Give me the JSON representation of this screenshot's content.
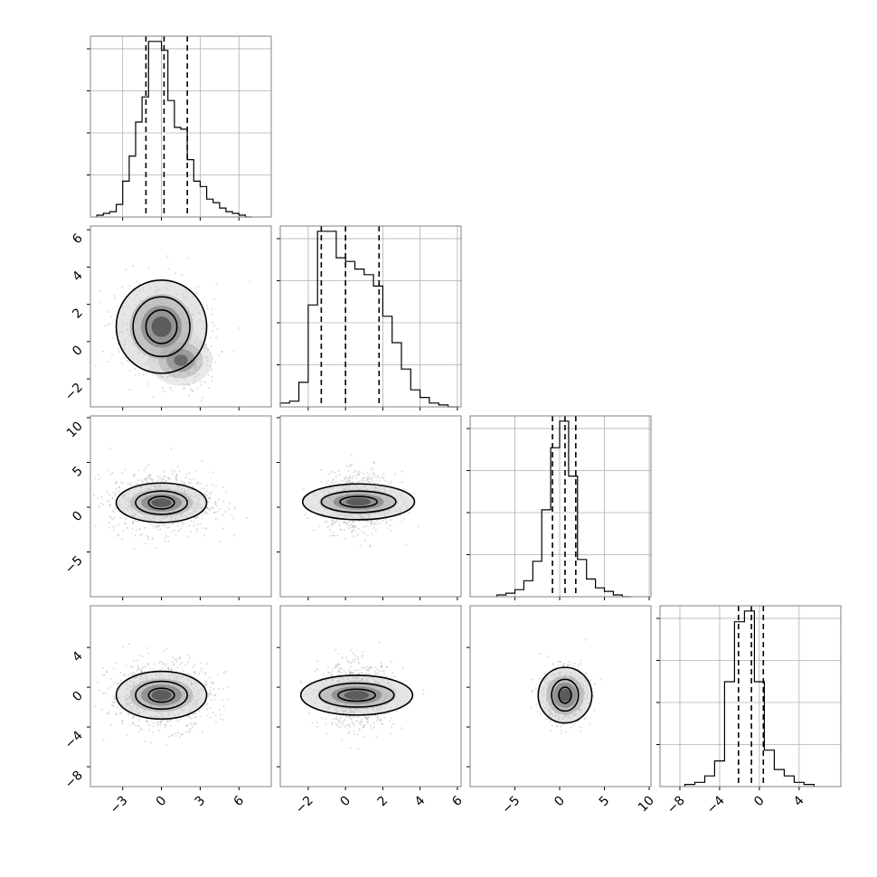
{
  "chart_data": {
    "type": "corner",
    "parameters": [
      {
        "range": [
          -5.5,
          8.5
        ],
        "xticks": [
          -3,
          0,
          3,
          6
        ],
        "xtick_labels": [
          "−3",
          "0",
          "3",
          "6"
        ],
        "hist": {
          "edges": [
            -5.0,
            -4.5,
            -4.0,
            -3.5,
            -3.0,
            -2.5,
            -2.0,
            -1.5,
            -1.0,
            -0.5,
            0.0,
            0.5,
            1.0,
            1.5,
            2.0,
            2.5,
            3.0,
            3.5,
            4.0,
            4.5,
            5.0,
            5.5,
            6.0,
            6.5,
            7.0
          ],
          "counts": [
            1,
            2,
            3,
            7,
            20,
            34,
            53,
            67,
            98,
            98,
            93,
            65,
            50,
            49,
            32,
            20,
            17,
            10,
            8,
            5,
            3,
            2,
            1,
            0
          ]
        },
        "quantiles": [
          -1.2,
          0.2,
          2.0
        ]
      },
      {
        "range": [
          -3.5,
          6.2
        ],
        "xticks": [
          -2,
          0,
          2,
          4,
          6
        ],
        "xtick_labels": [
          "−2",
          "0",
          "2",
          "4",
          "6"
        ],
        "yticks": [
          -2,
          0,
          2,
          4,
          6
        ],
        "ytick_labels": [
          "−2",
          "0",
          "2",
          "4",
          "6"
        ],
        "hist": {
          "edges": [
            -3.5,
            -3.0,
            -2.5,
            -2.0,
            -1.5,
            -1.0,
            -0.5,
            0.0,
            0.5,
            1.0,
            1.5,
            2.0,
            2.5,
            3.0,
            3.5,
            4.0,
            4.5,
            5.0,
            5.5,
            6.0
          ],
          "counts": [
            2,
            3,
            13,
            54,
            93,
            93,
            79,
            77,
            73,
            70,
            64,
            48,
            34,
            20,
            9,
            5,
            2,
            1,
            0
          ]
        },
        "quantiles": [
          -1.3,
          0.0,
          1.8
        ]
      },
      {
        "range": [
          -10,
          10.2
        ],
        "xticks": [
          -5,
          0,
          5,
          10
        ],
        "xtick_labels": [
          "−5",
          "0",
          "5",
          "10"
        ],
        "yticks": [
          -5,
          0,
          5,
          10
        ],
        "ytick_labels": [
          "−5",
          "0",
          "5",
          "10"
        ],
        "hist": {
          "edges": [
            -7.0,
            -6.0,
            -5.0,
            -4.0,
            -3.0,
            -2.0,
            -1.0,
            0.0,
            1.0,
            2.0,
            3.0,
            4.0,
            5.0,
            6.0,
            7.0,
            8.0
          ],
          "counts": [
            1,
            2,
            4,
            9,
            20,
            49,
            84,
            99,
            68,
            21,
            10,
            5,
            3,
            1,
            0
          ]
        },
        "quantiles": [
          -0.8,
          0.6,
          1.8
        ]
      },
      {
        "range": [
          -10,
          8.2
        ],
        "xticks": [
          -8,
          -4,
          0,
          4
        ],
        "xtick_labels": [
          "−8",
          "−4",
          "0",
          "4"
        ],
        "yticks": [
          -8,
          -4,
          0,
          4
        ],
        "ytick_labels": [
          "−8",
          "−4",
          "0",
          "4"
        ],
        "hist": {
          "edges": [
            -7.5,
            -6.5,
            -5.5,
            -4.5,
            -3.5,
            -2.5,
            -1.5,
            -0.5,
            0.5,
            1.5,
            2.5,
            3.5,
            4.5,
            5.5
          ],
          "counts": [
            1,
            2,
            5,
            12,
            49,
            77,
            82,
            49,
            17,
            8,
            5,
            2,
            1
          ]
        },
        "quantiles": [
          -2.1,
          -0.8,
          0.4
        ]
      }
    ],
    "pairs": [
      {
        "x": 0,
        "y": 1,
        "center": [
          0.0,
          0.8
        ],
        "alt_center": [
          1.5,
          -1.0
        ],
        "spread": [
          1.8,
          1.2
        ],
        "contours": [
          [
            1.2,
            0.9
          ],
          [
            2.2,
            1.6
          ],
          [
            3.5,
            2.5
          ]
        ]
      },
      {
        "x": 0,
        "y": 2,
        "center": [
          0.0,
          0.5
        ],
        "spread": [
          2.0,
          1.7
        ],
        "contours": [
          [
            1.0,
            0.7
          ],
          [
            2.0,
            1.3
          ],
          [
            3.5,
            2.2
          ]
        ]
      },
      {
        "x": 1,
        "y": 2,
        "center": [
          0.7,
          0.6
        ],
        "spread": [
          1.0,
          1.6
        ],
        "contours": [
          [
            1.0,
            0.6
          ],
          [
            2.0,
            1.2
          ],
          [
            3.0,
            2.0
          ]
        ]
      },
      {
        "x": 0,
        "y": 3,
        "center": [
          0.0,
          -0.8
        ],
        "spread": [
          2.0,
          1.7
        ],
        "contours": [
          [
            1.0,
            0.7
          ],
          [
            2.0,
            1.4
          ],
          [
            3.5,
            2.4
          ]
        ]
      },
      {
        "x": 1,
        "y": 3,
        "center": [
          0.6,
          -0.8
        ],
        "spread": [
          1.0,
          1.6
        ],
        "contours": [
          [
            1.0,
            0.6
          ],
          [
            2.0,
            1.2
          ],
          [
            3.0,
            2.0
          ]
        ]
      },
      {
        "x": 2,
        "y": 3,
        "center": [
          0.6,
          -0.8
        ],
        "spread": [
          1.2,
          1.3
        ],
        "contours": [
          [
            0.7,
            0.8
          ],
          [
            1.5,
            1.6
          ],
          [
            3.0,
            2.8
          ]
        ]
      }
    ]
  },
  "theme": {
    "line_color": "#000000",
    "grid_color": "#b0b0b0",
    "axes_color": "#808080",
    "scatter_color": "#999999"
  }
}
